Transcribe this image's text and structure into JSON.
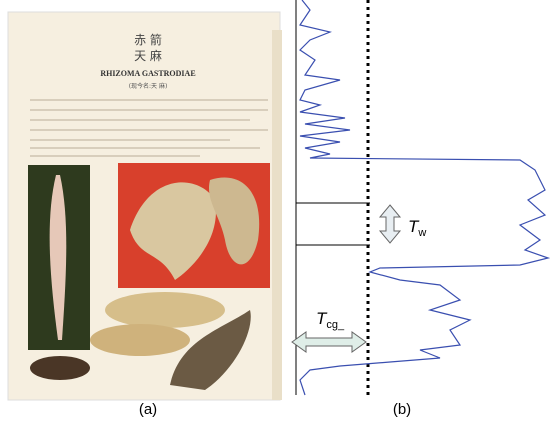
{
  "panels": [
    {
      "label": "(a)",
      "page": {
        "title_lines": [
          "赤 箭",
          "天 麻"
        ],
        "latin": "RHIZOMA GASTRODIAE",
        "subtitle": "(现今名:天 麻)"
      }
    },
    {
      "label": "(b)",
      "annotations": [
        {
          "symbol": "T",
          "subscript": "w"
        },
        {
          "symbol": "T",
          "subscript": "cg_"
        }
      ]
    }
  ]
}
